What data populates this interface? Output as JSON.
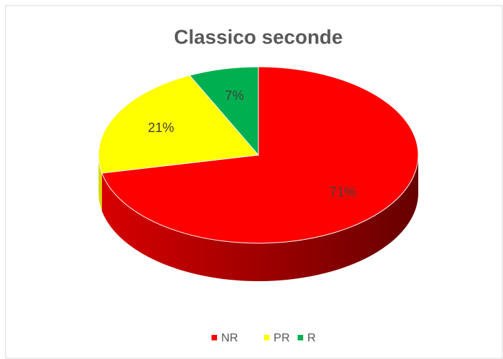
{
  "chart_data": {
    "type": "pie3d",
    "title": "Classico seconde",
    "categories": [
      "NR",
      "PR",
      "R"
    ],
    "values": [
      71,
      21,
      7
    ],
    "value_labels": [
      "71%",
      "21%",
      "7%"
    ],
    "colors": [
      "#ff0000",
      "#ffff00",
      "#00b050"
    ],
    "legend": "bottom"
  }
}
